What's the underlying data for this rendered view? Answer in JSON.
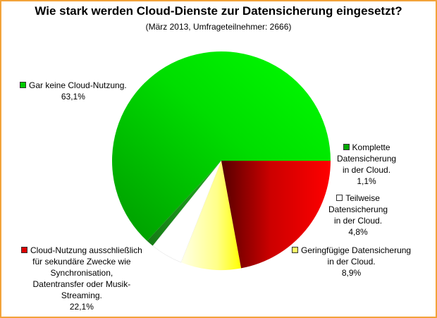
{
  "title": "Wie stark werden Cloud-Dienste zur Datensicherung eingesetzt?",
  "subtitle": "(März 2013, Umfrageteilnehmer: 2666)",
  "chart_data": {
    "type": "pie",
    "title": "Wie stark werden Cloud-Dienste zur Datensicherung eingesetzt?",
    "subtitle": "(März 2013, Umfrageteilnehmer: 2666)",
    "slices": [
      {
        "label": "Gar keine Cloud-Nutzung.",
        "value": 63.1,
        "value_label": "63,1%",
        "color": "#00ee00"
      },
      {
        "label": "Komplette Datensicherung in der Cloud.",
        "value": 1.1,
        "value_label": "1,1%",
        "color": "#1f9a1f"
      },
      {
        "label": "Teilweise Datensicherung in der Cloud.",
        "value": 4.8,
        "value_label": "4,8%",
        "color": "#ffffff"
      },
      {
        "label": "Geringfügige Datensicherung in der Cloud.",
        "value": 8.9,
        "value_label": "8,9%",
        "color": "#ffff33"
      },
      {
        "label": "Cloud-Nutzung ausschließlich für sekundäre Zwecke wie Synchronisation, Datentransfer oder Musik-Streaming.",
        "value": 22.1,
        "value_label": "22,1%",
        "color": "#ee0000"
      }
    ]
  },
  "labels": {
    "s0": {
      "lines": [
        "Gar keine Cloud-Nutzung.",
        "63,1%"
      ]
    },
    "s1": {
      "lines": [
        "Komplette",
        "Datensicherung",
        "in der Cloud.",
        "1,1%"
      ]
    },
    "s2": {
      "lines": [
        "Teilweise",
        "Datensicherung",
        "in der Cloud.",
        "4,8%"
      ]
    },
    "s3": {
      "lines": [
        "Geringfügige Datensicherung",
        "in der Cloud.",
        "8,9%"
      ]
    },
    "s4": {
      "lines": [
        "Cloud-Nutzung ausschließlich",
        "für sekundäre Zwecke wie",
        "Synchronisation,",
        "Datentransfer oder Musik-",
        "Streaming.",
        "22,1%"
      ]
    }
  }
}
